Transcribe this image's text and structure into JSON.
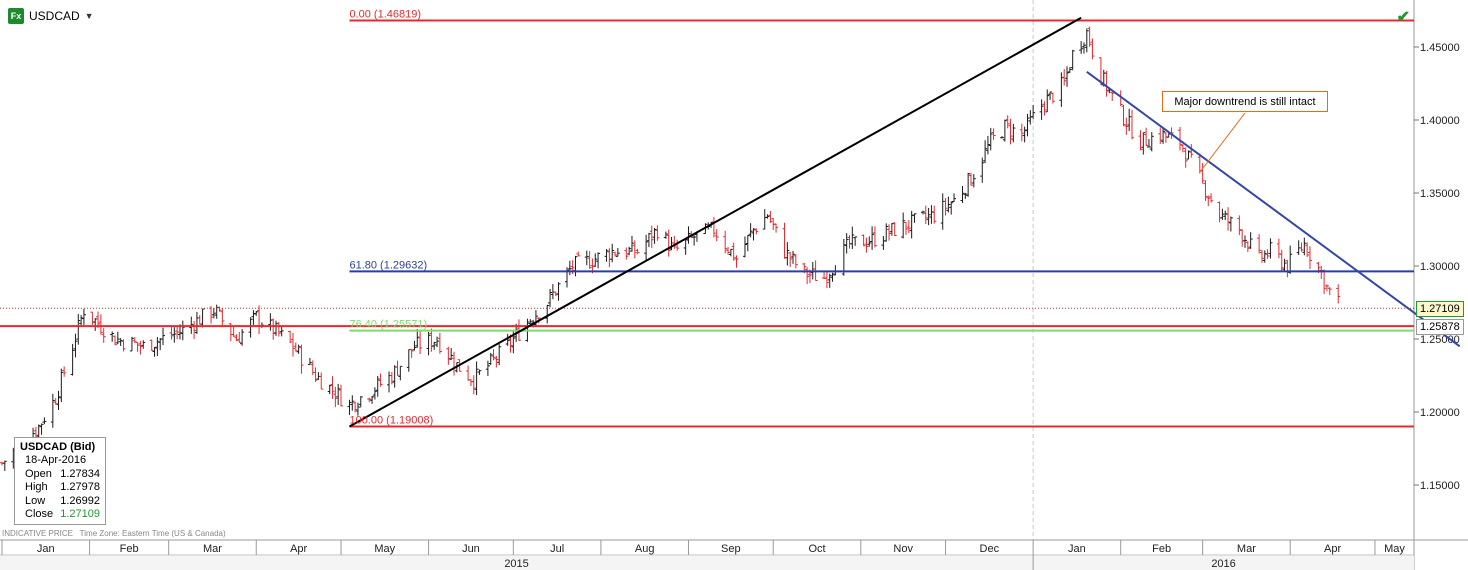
{
  "header": {
    "symbol": "USDCAD",
    "fx_badge": "Fx",
    "icon": "fx-badge-icon",
    "check_icon": "green-check-icon"
  },
  "info": {
    "title": "USDCAD (Bid)",
    "date": "18-Apr-2016",
    "open_label": "Open",
    "open": "1.27834",
    "high_label": "High",
    "high": "1.27978",
    "low_label": "Low",
    "low": "1.26992",
    "close_label": "Close",
    "close": "1.27109"
  },
  "footer": {
    "left": "INDICATIVE PRICE",
    "tz": "Time Zone: Eastern Time (US & Canada)"
  },
  "callout": {
    "text": "Major downtrend is still intact",
    "color": "#e86a1c"
  },
  "colors": {
    "up": "#1a1a1a",
    "down": "#e8282d",
    "fib_red": "#e8282d",
    "fib_blue": "#2d3f9e",
    "fib_green": "#7bdc6b",
    "trend_black": "#000000",
    "trend_blue": "#3347a8",
    "last_tag": "#fff7cc"
  },
  "price_tags": {
    "last": "1.27109",
    "level": "1.25878"
  },
  "chart_data": {
    "type": "ohlc",
    "title": "USDCAD (Bid)",
    "ylim": [
      1.1,
      1.47
    ],
    "y_ticks": [
      "1.15000",
      "1.20000",
      "1.25000",
      "1.30000",
      "1.35000",
      "1.40000",
      "1.45000"
    ],
    "months": [
      "Jan",
      "Feb",
      "Mar",
      "Apr",
      "May",
      "Jun",
      "Jul",
      "Aug",
      "Sep",
      "Oct",
      "Nov",
      "Dec",
      "Jan",
      "Feb",
      "Mar",
      "Apr",
      "May"
    ],
    "years": [
      "2015",
      "2016"
    ],
    "fib_levels": [
      {
        "label": "0.00 (1.46819)",
        "value": 1.46819,
        "color": "#e8282d"
      },
      {
        "label": "61.80 (1.29632)",
        "value": 1.29632,
        "color": "#2d3f9e"
      },
      {
        "label": "76.40 (1.25571)",
        "value": 1.25571,
        "color": "#7bdc6b"
      },
      {
        "label": "100.00 (1.19008)",
        "value": 1.19008,
        "color": "#e8282d"
      }
    ],
    "horizontal_lines": [
      {
        "value": 1.25878,
        "color": "#e8282d"
      },
      {
        "value": 1.27109,
        "color": "#e8282d",
        "dotted": true
      }
    ],
    "trendlines": [
      {
        "name": "uptrend",
        "from": [
          "2015-05-04",
          1.19008
        ],
        "to": [
          "2016-01-18",
          1.47
        ],
        "color": "#000000"
      },
      {
        "name": "downtrend",
        "from": [
          "2016-01-20",
          1.433
        ],
        "to": [
          "2016-05-31",
          1.245
        ],
        "color": "#3347a8"
      }
    ],
    "anchors": [
      [
        "2015-01-01",
        1.165
      ],
      [
        "2015-01-14",
        1.19
      ],
      [
        "2015-01-20",
        1.21
      ],
      [
        "2015-01-26",
        1.245
      ],
      [
        "2015-01-30",
        1.27
      ],
      [
        "2015-02-10",
        1.25
      ],
      [
        "2015-02-20",
        1.245
      ],
      [
        "2015-03-05",
        1.255
      ],
      [
        "2015-03-17",
        1.27
      ],
      [
        "2015-03-25",
        1.25
      ],
      [
        "2015-04-01",
        1.265
      ],
      [
        "2015-04-08",
        1.255
      ],
      [
        "2015-04-14",
        1.245
      ],
      [
        "2015-04-22",
        1.225
      ],
      [
        "2015-05-04",
        1.205
      ],
      [
        "2015-05-12",
        1.215
      ],
      [
        "2015-05-19",
        1.225
      ],
      [
        "2015-05-27",
        1.245
      ],
      [
        "2015-06-04",
        1.25
      ],
      [
        "2015-06-11",
        1.232
      ],
      [
        "2015-06-17",
        1.222
      ],
      [
        "2015-06-29",
        1.245
      ],
      [
        "2015-07-06",
        1.262
      ],
      [
        "2015-07-13",
        1.275
      ],
      [
        "2015-07-22",
        1.3
      ],
      [
        "2015-07-30",
        1.305
      ],
      [
        "2015-08-05",
        1.31
      ],
      [
        "2015-08-14",
        1.31
      ],
      [
        "2015-08-21",
        1.325
      ],
      [
        "2015-08-27",
        1.31
      ],
      [
        "2015-09-03",
        1.32
      ],
      [
        "2015-09-10",
        1.325
      ],
      [
        "2015-09-18",
        1.305
      ],
      [
        "2015-09-24",
        1.325
      ],
      [
        "2015-09-29",
        1.335
      ],
      [
        "2015-10-05",
        1.31
      ],
      [
        "2015-10-12",
        1.295
      ],
      [
        "2015-10-19",
        1.292
      ],
      [
        "2015-10-28",
        1.315
      ],
      [
        "2015-11-05",
        1.318
      ],
      [
        "2015-11-13",
        1.325
      ],
      [
        "2015-11-20",
        1.33
      ],
      [
        "2015-11-27",
        1.335
      ],
      [
        "2015-12-04",
        1.345
      ],
      [
        "2015-12-10",
        1.36
      ],
      [
        "2015-12-17",
        1.385
      ],
      [
        "2015-12-22",
        1.395
      ],
      [
        "2015-12-28",
        1.39
      ],
      [
        "2016-01-04",
        1.41
      ],
      [
        "2016-01-12",
        1.425
      ],
      [
        "2016-01-15",
        1.445
      ],
      [
        "2016-01-20",
        1.46
      ],
      [
        "2016-01-25",
        1.43
      ],
      [
        "2016-02-01",
        1.405
      ],
      [
        "2016-02-08",
        1.385
      ],
      [
        "2016-02-15",
        1.39
      ],
      [
        "2016-02-22",
        1.385
      ],
      [
        "2016-02-29",
        1.36
      ],
      [
        "2016-03-07",
        1.335
      ],
      [
        "2016-03-14",
        1.325
      ],
      [
        "2016-03-21",
        1.305
      ],
      [
        "2016-03-25",
        1.31
      ],
      [
        "2016-03-31",
        1.3
      ],
      [
        "2016-04-06",
        1.315
      ],
      [
        "2016-04-12",
        1.295
      ],
      [
        "2016-04-14",
        1.285
      ],
      [
        "2016-04-18",
        1.275
      ]
    ]
  }
}
